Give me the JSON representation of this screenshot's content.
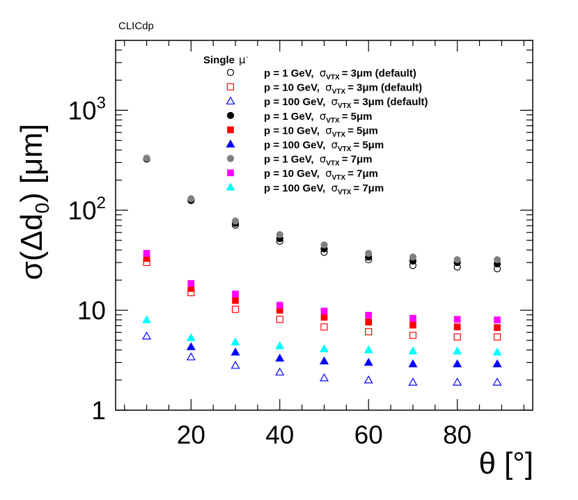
{
  "chart_data": {
    "type": "scatter",
    "title": "CLICdp",
    "xlabel": {
      "main": "θ",
      "unit": "[°]"
    },
    "ylabel": {
      "prefix": "σ(Δd",
      "sub": "0",
      "suffix": ") [μm]"
    },
    "xlim": [
      3,
      97
    ],
    "ylim": [
      1,
      5000
    ],
    "yscale": "log",
    "x_ticks": [
      "20",
      "40",
      "60",
      "80"
    ],
    "x_tick_values": [
      20,
      40,
      60,
      80
    ],
    "y_tick_labels": [
      {
        "value": 1,
        "base": "1",
        "exp": ""
      },
      {
        "value": 10,
        "base": "10",
        "exp": ""
      },
      {
        "value": 100,
        "base": "10",
        "exp": "2"
      },
      {
        "value": 1000,
        "base": "10",
        "exp": "3"
      }
    ],
    "legend": {
      "header": "Single",
      "header_particle": "μ",
      "header_charge": "-",
      "position": "top-center"
    },
    "x": [
      10,
      20,
      30,
      40,
      50,
      60,
      70,
      80,
      89
    ],
    "series": [
      {
        "name": "p = 1 GeV, σVTX = 3μm (default)",
        "momentum": "p = 1 GeV,",
        "sigma": "σ",
        "sub": "VTX",
        "res": "= 3μm (default)",
        "color": "#000000",
        "marker": "open-circle",
        "values": [
          325,
          125,
          71,
          49,
          38,
          32,
          28,
          27,
          26
        ]
      },
      {
        "name": "p = 10 GeV, σVTX = 3μm (default)",
        "momentum": "p = 10 GeV,",
        "sigma": "σ",
        "sub": "VTX",
        "res": "= 3μm (default)",
        "color": "#ff0000",
        "marker": "open-square",
        "values": [
          30,
          15,
          10.2,
          8.1,
          6.8,
          6.1,
          5.6,
          5.4,
          5.4
        ]
      },
      {
        "name": "p = 100 GeV, σVTX = 3μm (default)",
        "momentum": "p = 100 GeV,",
        "sigma": "σ",
        "sub": "VTX",
        "res": "= 3μm (default)",
        "color": "#0000ff",
        "marker": "open-triangle",
        "values": [
          5.5,
          3.4,
          2.8,
          2.4,
          2.1,
          2.0,
          1.9,
          1.9,
          1.9
        ]
      },
      {
        "name": "p = 1 GeV, σVTX = 5μm",
        "momentum": "p = 1 GeV,",
        "sigma": "σ",
        "sub": "VTX",
        "res": "= 5μm",
        "color": "#000000",
        "marker": "filled-circle",
        "values": [
          328,
          127,
          74,
          52,
          41,
          34,
          31,
          30,
          29
        ]
      },
      {
        "name": "p = 10 GeV, σVTX = 5μm",
        "momentum": "p = 10 GeV,",
        "sigma": "σ",
        "sub": "VTX",
        "res": "= 5μm",
        "color": "#ff0000",
        "marker": "filled-square",
        "values": [
          33,
          16.5,
          12.5,
          10,
          8.5,
          7.6,
          7.1,
          6.8,
          6.7
        ]
      },
      {
        "name": "p = 100 GeV, σVTX = 5μm",
        "momentum": "p = 100 GeV,",
        "sigma": "σ",
        "sub": "VTX",
        "res": "= 5μm",
        "color": "#0000ff",
        "marker": "filled-triangle",
        "values": [
          null,
          4.3,
          3.8,
          3.3,
          3.1,
          3.0,
          2.9,
          2.9,
          2.9
        ]
      },
      {
        "name": "p = 1 GeV, σVTX = 7μm",
        "momentum": "p = 1 GeV,",
        "sigma": "σ",
        "sub": "VTX",
        "res": "= 7μm",
        "color": "#808080",
        "marker": "filled-circle",
        "values": [
          332,
          130,
          78,
          57,
          45,
          37,
          34,
          32,
          32
        ]
      },
      {
        "name": "p = 10 GeV, σVTX = 7μm",
        "momentum": "p = 10 GeV,",
        "sigma": "σ",
        "sub": "VTX",
        "res": "= 7μm",
        "color": "#ff00ff",
        "marker": "filled-square",
        "values": [
          37,
          18.5,
          14.5,
          11.2,
          9.8,
          8.9,
          8.3,
          8.1,
          8.0
        ]
      },
      {
        "name": "p = 100 GeV, σVTX = 7μm",
        "momentum": "p = 100 GeV,",
        "sigma": "σ",
        "sub": "VTX",
        "res": "= 7μm",
        "color": "#00ffff",
        "marker": "filled-triangle",
        "values": [
          8.0,
          5.3,
          4.8,
          4.4,
          4.1,
          4.0,
          3.9,
          3.9,
          3.8
        ]
      }
    ]
  }
}
